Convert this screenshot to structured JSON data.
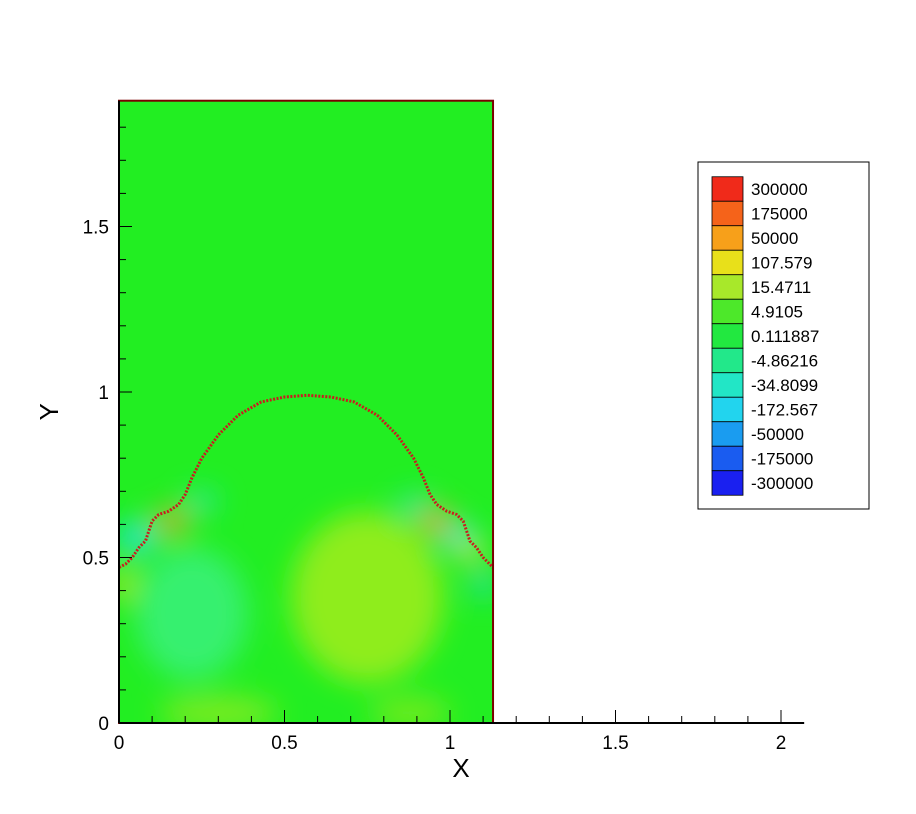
{
  "chart_data": {
    "type": "heatmap",
    "title": "",
    "xlabel": "X",
    "ylabel": "Y",
    "xlim": [
      0,
      2.07
    ],
    "ylim": [
      0,
      1.88
    ],
    "domain_extent": {
      "x": [
        0,
        1.13
      ],
      "y": [
        0,
        1.88
      ]
    },
    "x_ticks": [
      {
        "value": 0,
        "label": "0"
      },
      {
        "value": 0.5,
        "label": "0.5"
      },
      {
        "value": 1,
        "label": "1"
      },
      {
        "value": 1.5,
        "label": "1.5"
      },
      {
        "value": 2,
        "label": "2"
      }
    ],
    "y_ticks": [
      {
        "value": 0,
        "label": "0"
      },
      {
        "value": 0.5,
        "label": "0.5"
      },
      {
        "value": 1,
        "label": "1"
      },
      {
        "value": 1.5,
        "label": "1.5"
      }
    ],
    "background_color": "#22ee22",
    "interface_color": "#c81e1e",
    "interface_curve": [
      [
        0.0,
        0.47
      ],
      [
        0.02,
        0.48
      ],
      [
        0.04,
        0.5
      ],
      [
        0.06,
        0.53
      ],
      [
        0.08,
        0.55
      ],
      [
        0.09,
        0.58
      ],
      [
        0.1,
        0.61
      ],
      [
        0.12,
        0.63
      ],
      [
        0.15,
        0.64
      ],
      [
        0.18,
        0.66
      ],
      [
        0.2,
        0.69
      ],
      [
        0.22,
        0.74
      ],
      [
        0.25,
        0.8
      ],
      [
        0.3,
        0.87
      ],
      [
        0.36,
        0.93
      ],
      [
        0.43,
        0.97
      ],
      [
        0.5,
        0.985
      ],
      [
        0.57,
        0.99
      ],
      [
        0.64,
        0.985
      ],
      [
        0.71,
        0.97
      ],
      [
        0.78,
        0.93
      ],
      [
        0.84,
        0.87
      ],
      [
        0.89,
        0.8
      ],
      [
        0.92,
        0.74
      ],
      [
        0.94,
        0.69
      ],
      [
        0.96,
        0.66
      ],
      [
        0.99,
        0.64
      ],
      [
        1.02,
        0.63
      ],
      [
        1.04,
        0.61
      ],
      [
        1.05,
        0.58
      ],
      [
        1.06,
        0.55
      ],
      [
        1.08,
        0.53
      ],
      [
        1.1,
        0.5
      ],
      [
        1.12,
        0.48
      ],
      [
        1.13,
        0.47
      ]
    ],
    "field_features": [
      {
        "x": 0.22,
        "y": 0.33,
        "rx": 0.17,
        "ry": 0.2,
        "color": "#3ef08a",
        "opacity": 0.75
      },
      {
        "x": 0.75,
        "y": 0.38,
        "rx": 0.23,
        "ry": 0.26,
        "color": "#b4ec1c",
        "opacity": 0.75
      },
      {
        "x": 0.3,
        "y": 0.03,
        "rx": 0.18,
        "ry": 0.05,
        "color": "#a6ea22",
        "opacity": 0.7
      },
      {
        "x": 0.88,
        "y": 0.03,
        "rx": 0.12,
        "ry": 0.05,
        "color": "#a6ea22",
        "opacity": 0.6
      },
      {
        "x": 0.05,
        "y": 0.56,
        "rx": 0.06,
        "ry": 0.05,
        "color": "#26e3e0",
        "opacity": 0.9
      },
      {
        "x": 0.16,
        "y": 0.61,
        "rx": 0.05,
        "ry": 0.04,
        "color": "#f3a21a",
        "opacity": 0.85
      },
      {
        "x": 0.25,
        "y": 0.67,
        "rx": 0.05,
        "ry": 0.03,
        "color": "#2de6c6",
        "opacity": 0.8
      },
      {
        "x": 0.89,
        "y": 0.66,
        "rx": 0.05,
        "ry": 0.03,
        "color": "#2de6c6",
        "opacity": 0.8
      },
      {
        "x": 0.96,
        "y": 0.61,
        "rx": 0.05,
        "ry": 0.04,
        "color": "#f4a31a",
        "opacity": 0.9
      },
      {
        "x": 1.03,
        "y": 0.56,
        "rx": 0.05,
        "ry": 0.04,
        "color": "#26e3e0",
        "opacity": 0.9
      },
      {
        "x": 1.06,
        "y": 0.52,
        "rx": 0.04,
        "ry": 0.03,
        "color": "#f0e11a",
        "opacity": 0.9
      },
      {
        "x": 1.1,
        "y": 0.42,
        "rx": 0.03,
        "ry": 0.04,
        "color": "#26d8e8",
        "opacity": 0.85
      },
      {
        "x": 0.01,
        "y": 0.42,
        "rx": 0.03,
        "ry": 0.05,
        "color": "#e9e21a",
        "opacity": 0.85
      }
    ],
    "legend": {
      "placement": "right",
      "levels": [
        {
          "label": "300000",
          "color": "#f02a1a"
        },
        {
          "label": "175000",
          "color": "#f5631a"
        },
        {
          "label": "50000",
          "color": "#f7a01a"
        },
        {
          "label": "107.579",
          "color": "#e8e01a"
        },
        {
          "label": "15.4711",
          "color": "#a8e82a"
        },
        {
          "label": "4.9105",
          "color": "#4de82a"
        },
        {
          "label": "0.111887",
          "color": "#22e840"
        },
        {
          "label": "-4.86216",
          "color": "#22e88a"
        },
        {
          "label": "-34.8099",
          "color": "#22e6c6"
        },
        {
          "label": "-172.567",
          "color": "#22d4ee"
        },
        {
          "label": "-50000",
          "color": "#1a9cf0"
        },
        {
          "label": "-175000",
          "color": "#1a5cf0"
        },
        {
          "label": "-300000",
          "color": "#1a20f0"
        }
      ]
    }
  }
}
